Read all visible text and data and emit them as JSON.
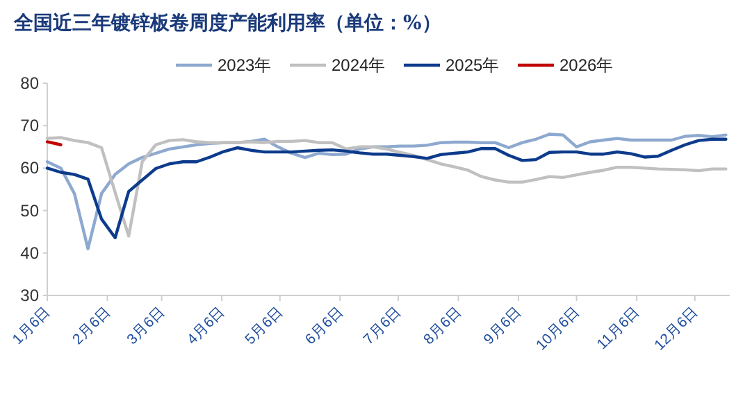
{
  "chart_data": {
    "type": "line",
    "title": "全国近三年镀锌板卷周度产能利用率（单位：%）",
    "x": [
      "--01-06",
      "--01-13",
      "--01-20",
      "--01-27",
      "--02-03",
      "--02-10",
      "--02-17",
      "--02-24",
      "--03-03",
      "--03-10",
      "--03-17",
      "--03-24",
      "--03-31",
      "--04-07",
      "--04-14",
      "--04-21",
      "--04-28",
      "--05-05",
      "--05-12",
      "--05-19",
      "--05-26",
      "--06-02",
      "--06-09",
      "--06-16",
      "--06-23",
      "--06-30",
      "--07-07",
      "--07-14",
      "--07-21",
      "--07-28",
      "--08-04",
      "--08-11",
      "--08-18",
      "--08-25",
      "--09-01",
      "--09-08",
      "--09-15",
      "--09-22",
      "--09-29",
      "--10-06",
      "--10-13",
      "--10-20",
      "--10-27",
      "--11-03",
      "--11-10",
      "--11-17",
      "--11-24",
      "--12-01",
      "--12-08",
      "--12-15",
      "--12-22"
    ],
    "series": [
      {
        "name": "2023年",
        "color": "#8ea9d0",
        "values": [
          61.5,
          60,
          54,
          41,
          54,
          58.5,
          61,
          62.5,
          63.5,
          64.5,
          65,
          65.5,
          65.8,
          66,
          66,
          66.3,
          66.8,
          65,
          63.5,
          62.5,
          63.5,
          63.2,
          63.3,
          64.5,
          65,
          65,
          65.2,
          65.2,
          65.4,
          66,
          66.1,
          66.1,
          66,
          66,
          64.8,
          66,
          66.8,
          68,
          67.8,
          65,
          66.2,
          66.6,
          67,
          66.6,
          66.6,
          66.6,
          66.6,
          67.5,
          67.7,
          67.4,
          67.8
        ]
      },
      {
        "name": "2024年",
        "color": "#c0c0c0",
        "values": [
          67,
          67.2,
          66.5,
          66,
          64.8,
          54.3,
          44,
          61.5,
          65.5,
          66.5,
          66.7,
          66.2,
          66,
          66,
          66,
          66.2,
          66,
          66.3,
          66.3,
          66.5,
          66,
          66,
          64.5,
          65,
          65,
          64.5,
          63.7,
          63,
          62,
          61,
          60.3,
          59.5,
          58,
          57.2,
          56.7,
          56.7,
          57.3,
          58,
          57.8,
          58.4,
          59,
          59.5,
          60.2,
          60.2,
          60,
          59.8,
          59.7,
          59.6,
          59.4,
          59.8,
          59.8
        ]
      },
      {
        "name": "2025年",
        "color": "#0d3b8c",
        "values": [
          60,
          59,
          58.5,
          57.4,
          48,
          43.6,
          54.5,
          57.2,
          59.9,
          61,
          61.5,
          61.5,
          62.6,
          63.9,
          64.8,
          64.2,
          63.8,
          63.8,
          63.8,
          64,
          64.2,
          64.3,
          64,
          63.6,
          63.3,
          63.3,
          63,
          62.7,
          62.3,
          63.2,
          63.5,
          63.8,
          64.6,
          64.6,
          63,
          61.8,
          62,
          63.7,
          63.8,
          63.8,
          63.3,
          63.3,
          63.8,
          63.4,
          62.6,
          62.8,
          64.2,
          65.5,
          66.5,
          66.8,
          66.8
        ]
      },
      {
        "name": "2026年",
        "color": "#c00000",
        "x": [
          "--01-06",
          "--01-13"
        ],
        "values": [
          66.2,
          65.5
        ]
      }
    ],
    "xlim": [
      "--01-06",
      "--12-24"
    ],
    "xticks": [
      {
        "value": "--01-06",
        "label": "1月6日"
      },
      {
        "value": "--02-06",
        "label": "2月6日"
      },
      {
        "value": "--03-06",
        "label": "3月6日"
      },
      {
        "value": "--04-06",
        "label": "4月6日"
      },
      {
        "value": "--05-06",
        "label": "5月6日"
      },
      {
        "value": "--06-06",
        "label": "6月6日"
      },
      {
        "value": "--07-06",
        "label": "7月6日"
      },
      {
        "value": "--08-06",
        "label": "8月6日"
      },
      {
        "value": "--09-06",
        "label": "9月6日"
      },
      {
        "value": "--10-06",
        "label": "10月6日"
      },
      {
        "value": "--11-06",
        "label": "11月6日"
      },
      {
        "value": "--12-06",
        "label": "12月6日"
      }
    ],
    "ylim": [
      30,
      80
    ],
    "yticks": [
      30,
      40,
      50,
      60,
      70,
      80
    ],
    "legend": "top",
    "grid": false,
    "marker": "none",
    "line_style": "solid"
  }
}
